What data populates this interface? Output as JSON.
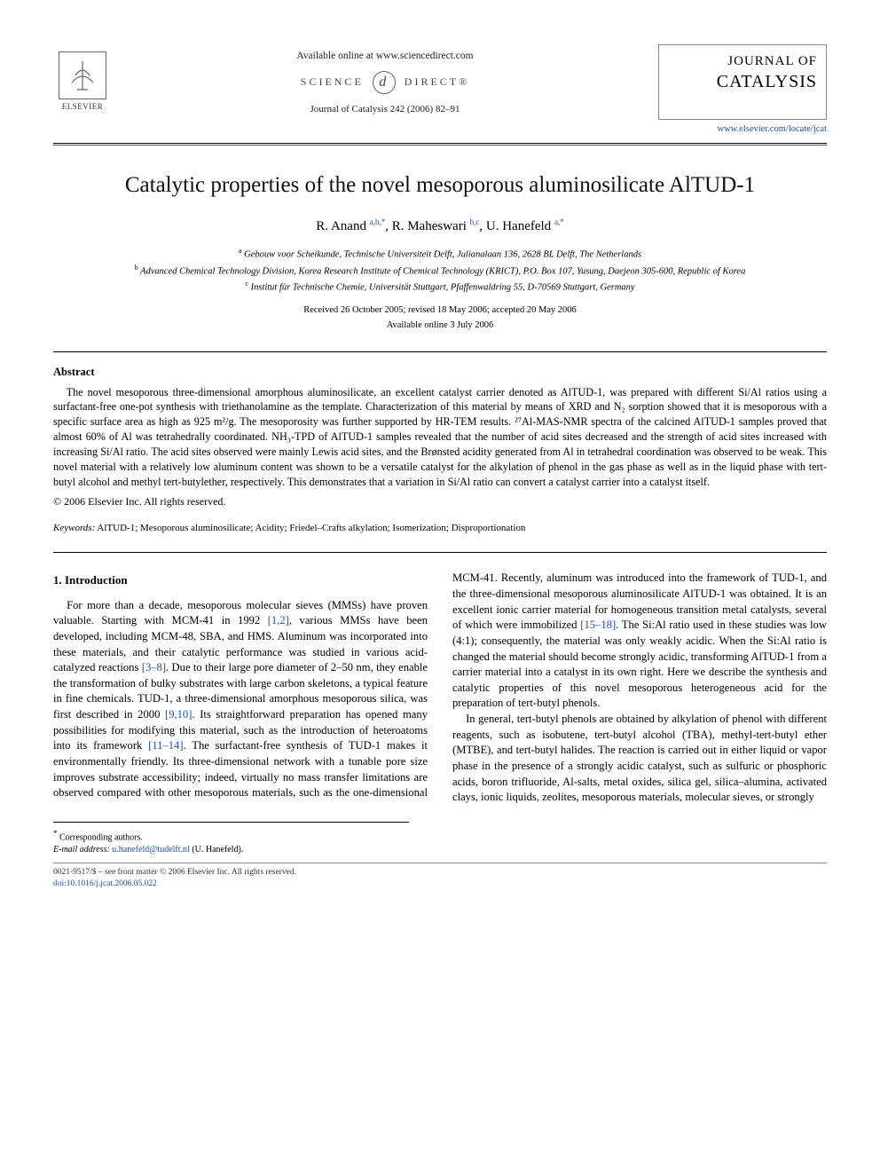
{
  "header": {
    "publisher": "ELSEVIER",
    "available_online": "Available online at www.sciencedirect.com",
    "sd_left": "SCIENCE",
    "sd_right": "DIRECT®",
    "journal_ref": "Journal of Catalysis 242 (2006) 82–91",
    "brand_line1": "JOURNAL OF",
    "brand_line2": "CATALYSIS",
    "journal_url": "www.elsevier.com/locate/jcat"
  },
  "title": "Catalytic properties of the novel mesoporous aluminosilicate AlTUD-1",
  "authors_html": "R. Anand <sup><a class='ref-link'>a,b,*</a></sup>, R. Maheswari <sup><a class='ref-link'>b,c</a></sup>, U. Hanefeld <sup><a class='ref-link'>a,*</a></sup>",
  "affiliations": {
    "a": "Gebouw voor Scheikunde, Technische Universiteit Delft, Julianalaan 136, 2628 BL Delft, The Netherlands",
    "b": "Advanced Chemical Technology Division, Korea Research Institute of Chemical Technology (KRICT), P.O. Box 107, Yusung, Daejeon 305-600, Republic of Korea",
    "c": "Institut für Technische Chemie, Universität Stuttgart, Pfaffenwaldring 55, D-70569 Stuttgart, Germany"
  },
  "dates": {
    "received": "Received 26 October 2005; revised 18 May 2006; accepted 20 May 2006",
    "online": "Available online 3 July 2006"
  },
  "abstract_heading": "Abstract",
  "abstract_body": "The novel mesoporous three-dimensional amorphous aluminosilicate, an excellent catalyst carrier denoted as AlTUD-1, was prepared with different Si/Al ratios using a surfactant-free one-pot synthesis with triethanolamine as the template. Characterization of this material by means of XRD and N₂ sorption showed that it is mesoporous with a specific surface area as high as 925 m²/g. The mesoporosity was further supported by HR-TEM results. ²⁷Al-MAS-NMR spectra of the calcined AlTUD-1 samples proved that almost 60% of Al was tetrahedrally coordinated. NH₃-TPD of AlTUD-1 samples revealed that the number of acid sites decreased and the strength of acid sites increased with increasing Si/Al ratio. The acid sites observed were mainly Lewis acid sites, and the Brønsted acidity generated from Al in tetrahedral coordination was observed to be weak. This novel material with a relatively low aluminum content was shown to be a versatile catalyst for the alkylation of phenol in the gas phase as well as in the liquid phase with tert-butyl alcohol and methyl tert-butylether, respectively. This demonstrates that a variation in Si/Al ratio can convert a catalyst carrier into a catalyst itself.",
  "copyright": "© 2006 Elsevier Inc. All rights reserved.",
  "keywords_label": "Keywords:",
  "keywords": "AlTUD-1; Mesoporous aluminosilicate; Acidity; Friedel–Crafts alkylation; Isomerization; Disproportionation",
  "section1_heading": "1. Introduction",
  "intro_para1_pre": "For more than a decade, mesoporous molecular sieves (MMSs) have proven valuable. Starting with MCM-41 in 1992 ",
  "intro_ref1": "[1,2]",
  "intro_para1_mid1": ", various MMSs have been developed, including MCM-48, SBA, and HMS. Aluminum was incorporated into these materials, and their catalytic performance was studied in various acid-catalyzed reactions ",
  "intro_ref2": "[3–8]",
  "intro_para1_mid2": ". Due to their large pore diameter of 2–50 nm, they enable the transformation of bulky substrates with large carbon skeletons, a typical feature in fine chemicals. TUD-1, a three-dimensional amorphous mesoporous silica, was first described in 2000 ",
  "intro_ref3": "[9,10]",
  "intro_para1_mid3": ". Its straightforward preparation has opened many possibilities for modifying this material, such as the introduction of heteroatoms into its framework ",
  "intro_ref4": "[11–14]",
  "intro_para1_post": ". The surfactant-free synthesis of TUD-1 makes it environmentally friendly. Its three-dimensional network with a tunable pore size improves substrate accessibility; indeed, virtually no",
  "intro_col2_pre": "mass transfer limitations are observed compared with other mesoporous materials, such as the one-dimensional MCM-41. Recently, aluminum was introduced into the framework of TUD-1, and the three-dimensional mesoporous aluminosilicate AlTUD-1 was obtained. It is an excellent ionic carrier material for homogeneous transition metal catalysts, several of which were immobilized ",
  "intro_ref5": "[15–18]",
  "intro_col2_post": ". The Si:Al ratio used in these studies was low (4:1); consequently, the material was only weakly acidic. When the Si:Al ratio is changed the material should become strongly acidic, transforming AlTUD-1 from a carrier material into a catalyst in its own right. Here we describe the synthesis and catalytic properties of this novel mesoporous heterogeneous acid for the preparation of tert-butyl phenols.",
  "intro_para2": "In general, tert-butyl phenols are obtained by alkylation of phenol with different reagents, such as isobutene, tert-butyl alcohol (TBA), methyl-tert-butyl ether (MTBE), and tert-butyl halides. The reaction is carried out in either liquid or vapor phase in the presence of a strongly acidic catalyst, such as sulfuric or phosphoric acids, boron trifluoride, Al-salts, metal oxides, silica gel, silica–alumina, activated clays, ionic liquids, zeolites, mesoporous materials, molecular sieves, or strongly",
  "footnote_corr": "Corresponding authors.",
  "footnote_email_label": "E-mail address:",
  "footnote_email": "u.hanefeld@tudelft.nl",
  "footnote_email_who": "(U. Hanefeld).",
  "footer_left": "0021-9517/$ – see front matter  © 2006 Elsevier Inc. All rights reserved.",
  "footer_doi": "doi:10.1016/j.jcat.2006.05.022",
  "colors": {
    "link": "#1a4fc9",
    "text": "#000000",
    "bg": "#ffffff"
  }
}
